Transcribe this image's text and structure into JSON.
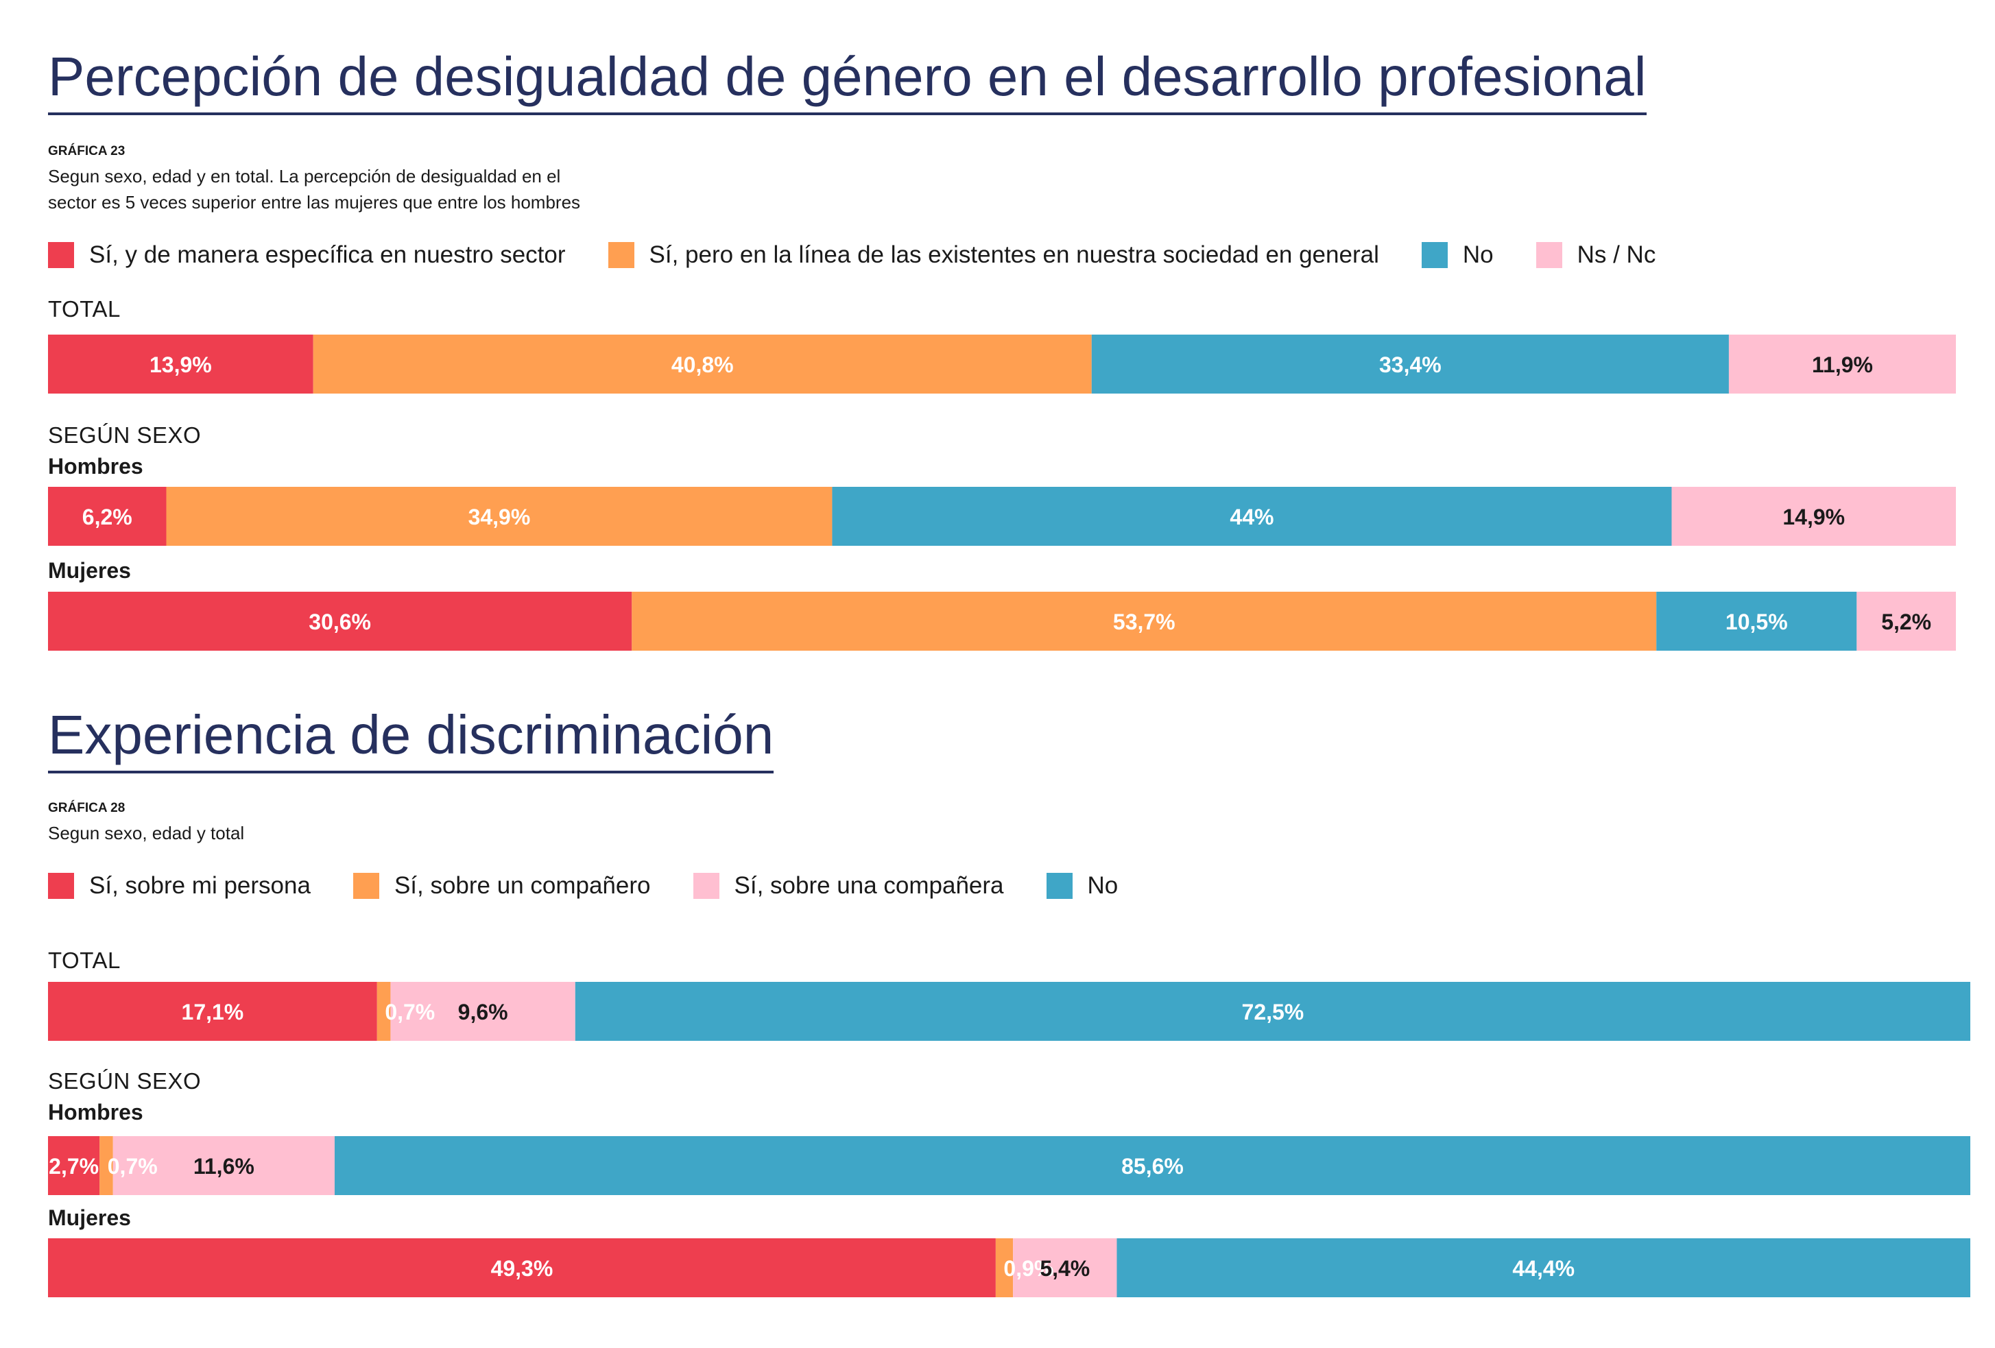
{
  "sections": [
    {
      "title": "Percepción de desigualdad de género en el desarrollo profesional",
      "code": "GRÁFICA 23",
      "subtitle_lines": [
        "Segun sexo, edad y en total. La percepción de desigualdad en el",
        "sector es 5 veces superior entre las mujeres que entre los hombres"
      ],
      "total_label": "TOTAL",
      "by_sex_label": "SEGÚN SEXO",
      "men_label": "Hombres",
      "women_label": "Mujeres"
    },
    {
      "title": "Experiencia de discriminación",
      "code": "GRÁFICA 28",
      "subtitle_lines": [
        "Segun sexo, edad y total"
      ],
      "total_label": "TOTAL",
      "by_sex_label": "SEGÚN SEXO",
      "men_label": "Hombres",
      "women_label": "Mujeres"
    }
  ],
  "chart_data": [
    {
      "type": "bar",
      "stacked": true,
      "orientation": "horizontal",
      "title": "Percepción de desigualdad de género en el desarrollo profesional",
      "categories": [
        "TOTAL",
        "Hombres",
        "Mujeres"
      ],
      "series": [
        {
          "name": "Sí, y de manera específica en nuestro sector",
          "color": "#ee3e4f",
          "label_color": "#ffffff",
          "values": [
            13.9,
            6.2,
            30.6
          ],
          "labels": [
            "13,9%",
            "6,2%",
            "30,6%"
          ]
        },
        {
          "name": "Sí, pero en la línea de las existentes en nuestra sociedad en general",
          "color": "#ff9f51",
          "label_color": "#ffffff",
          "values": [
            40.8,
            34.9,
            53.7
          ],
          "labels": [
            "40,8%",
            "34,9%",
            "53,7%"
          ]
        },
        {
          "name": "No",
          "color": "#3fa6c7",
          "label_color": "#ffffff",
          "values": [
            33.4,
            44,
            10.5
          ],
          "labels": [
            "33,4%",
            "44%",
            "10,5%"
          ]
        },
        {
          "name": "Ns / Nc",
          "color": "#ffbfd1",
          "label_color": "#1a1a1a",
          "values": [
            11.9,
            14.9,
            5.2
          ],
          "labels": [
            "11,9%",
            "14,9%",
            "5,2%"
          ]
        }
      ],
      "xlim": [
        0,
        100
      ]
    },
    {
      "type": "bar",
      "stacked": true,
      "orientation": "horizontal",
      "title": "Experiencia de discriminación",
      "categories": [
        "TOTAL",
        "Hombres",
        "Mujeres"
      ],
      "series": [
        {
          "name": "Sí, sobre mi persona",
          "color": "#ee3e4f",
          "label_color": "#ffffff",
          "values": [
            17.1,
            2.7,
            49.3
          ],
          "labels": [
            "17,1%",
            "2,7%",
            "49,3%"
          ]
        },
        {
          "name": "Sí, sobre un compañero",
          "color": "#ff9f51",
          "label_color": "#ffffff",
          "values": [
            0.7,
            0.7,
            0.9
          ],
          "labels": [
            "0,7%",
            "0,7%",
            "0,9%"
          ]
        },
        {
          "name": "Sí, sobre una compañera",
          "color": "#ffbfd1",
          "label_color": "#1a1a1a",
          "values": [
            9.6,
            11.6,
            5.4
          ],
          "labels": [
            "9,6%",
            "11,6%",
            "5,4%"
          ]
        },
        {
          "name": "No",
          "color": "#3fa6c7",
          "label_color": "#ffffff",
          "values": [
            72.5,
            85.6,
            44.4
          ],
          "labels": [
            "72,5%",
            "85,6%",
            "44,4%"
          ]
        }
      ],
      "xlim": [
        0,
        100
      ]
    }
  ]
}
